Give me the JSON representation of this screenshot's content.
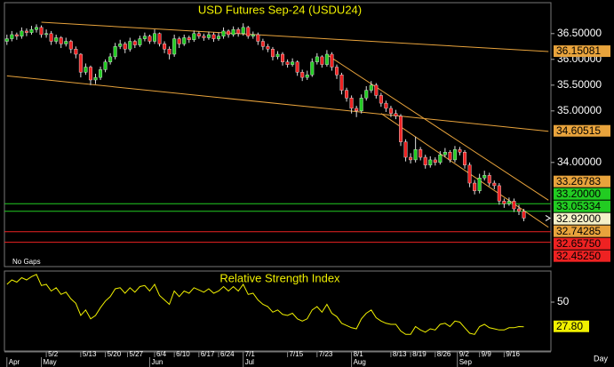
{
  "chart_data": {
    "type": "candlestick",
    "title": "USD Futures Sep-24 (USDU24)",
    "note": "No Gaps",
    "x_axis_label": "Day",
    "up_color": "#22cc22",
    "down_color": "#ee2222",
    "ylim": [
      31.98,
      37.1
    ],
    "yticks": [
      {
        "value": 36.5,
        "label": "36.50000"
      },
      {
        "value": 36.0,
        "label": "36.00000"
      },
      {
        "value": 35.5,
        "label": "35.50000"
      },
      {
        "value": 35.0,
        "label": "35.00000"
      },
      {
        "value": 34.0,
        "label": "34.00000"
      }
    ],
    "xlim": [
      -0.5,
      110.5
    ],
    "xticks": [
      {
        "value": 8,
        "label": "5/2"
      },
      {
        "value": 15,
        "label": "5/13"
      },
      {
        "value": 20,
        "label": "5/20"
      },
      {
        "value": 24.5,
        "label": "5/27"
      },
      {
        "value": 30,
        "label": "6/4"
      },
      {
        "value": 34,
        "label": "6/10"
      },
      {
        "value": 39,
        "label": "6/17"
      },
      {
        "value": 43,
        "label": "6/24"
      },
      {
        "value": 48,
        "label": "7/1"
      },
      {
        "value": 57,
        "label": "7/15"
      },
      {
        "value": 63,
        "label": "7/23"
      },
      {
        "value": 70,
        "label": "8/1"
      },
      {
        "value": 78,
        "label": "8/13"
      },
      {
        "value": 82,
        "label": "8/19"
      },
      {
        "value": 87,
        "label": "8/26"
      },
      {
        "value": 91.5,
        "label": "9/2"
      },
      {
        "value": 96,
        "label": "9/9"
      },
      {
        "value": 101,
        "label": "9/16"
      }
    ],
    "month_ticks": [
      {
        "value": 0,
        "label": "Apr"
      },
      {
        "value": 7,
        "label": "May"
      },
      {
        "value": 29,
        "label": "Jun"
      },
      {
        "value": 48,
        "label": "Jul"
      },
      {
        "value": 70,
        "label": "Aug"
      },
      {
        "value": 91.5,
        "label": "Sep"
      }
    ],
    "candles": [
      [
        36.35,
        36.48,
        36.28,
        36.4
      ],
      [
        36.4,
        36.55,
        36.35,
        36.48
      ],
      [
        36.48,
        36.52,
        36.38,
        36.45
      ],
      [
        36.45,
        36.62,
        36.4,
        36.55
      ],
      [
        36.55,
        36.6,
        36.45,
        36.52
      ],
      [
        36.52,
        36.65,
        36.48,
        36.58
      ],
      [
        36.58,
        36.68,
        36.52,
        36.62
      ],
      [
        36.62,
        36.66,
        36.42,
        36.48
      ],
      [
        36.48,
        36.58,
        36.42,
        36.5
      ],
      [
        36.5,
        36.55,
        36.28,
        36.35
      ],
      [
        36.35,
        36.48,
        36.3,
        36.42
      ],
      [
        36.42,
        36.45,
        36.22,
        36.3
      ],
      [
        36.3,
        36.42,
        36.25,
        36.35
      ],
      [
        36.35,
        36.38,
        36.12,
        36.2
      ],
      [
        36.2,
        36.25,
        36.02,
        36.1
      ],
      [
        36.1,
        36.12,
        35.65,
        35.75
      ],
      [
        35.75,
        35.92,
        35.7,
        35.85
      ],
      [
        35.85,
        35.88,
        35.5,
        35.6
      ],
      [
        35.6,
        35.72,
        35.52,
        35.65
      ],
      [
        35.65,
        35.86,
        35.6,
        35.8
      ],
      [
        35.8,
        36.0,
        35.75,
        35.95
      ],
      [
        35.95,
        36.12,
        35.9,
        36.05
      ],
      [
        36.05,
        36.32,
        36.0,
        36.25
      ],
      [
        36.25,
        36.38,
        36.2,
        36.3
      ],
      [
        36.3,
        36.34,
        36.12,
        36.2
      ],
      [
        36.2,
        36.42,
        36.15,
        36.35
      ],
      [
        36.35,
        36.38,
        36.22,
        36.28
      ],
      [
        36.28,
        36.46,
        36.24,
        36.4
      ],
      [
        36.4,
        36.52,
        36.35,
        36.45
      ],
      [
        36.45,
        36.48,
        36.3,
        36.35
      ],
      [
        36.35,
        36.58,
        36.3,
        36.5
      ],
      [
        36.5,
        36.52,
        36.25,
        36.3
      ],
      [
        36.3,
        36.35,
        36.12,
        36.2
      ],
      [
        36.2,
        36.25,
        36.0,
        36.1
      ],
      [
        36.1,
        36.48,
        36.05,
        36.4
      ],
      [
        36.4,
        36.44,
        36.22,
        36.3
      ],
      [
        36.3,
        36.48,
        36.26,
        36.42
      ],
      [
        36.42,
        36.46,
        36.32,
        36.38
      ],
      [
        36.38,
        36.56,
        36.34,
        36.5
      ],
      [
        36.5,
        36.54,
        36.4,
        36.45
      ],
      [
        36.45,
        36.5,
        36.36,
        36.42
      ],
      [
        36.42,
        36.54,
        36.38,
        36.48
      ],
      [
        36.48,
        36.52,
        36.34,
        36.4
      ],
      [
        36.4,
        36.52,
        36.36,
        36.45
      ],
      [
        36.45,
        36.62,
        36.4,
        36.55
      ],
      [
        36.55,
        36.58,
        36.42,
        36.48
      ],
      [
        36.48,
        36.64,
        36.44,
        36.58
      ],
      [
        36.58,
        36.62,
        36.44,
        36.5
      ],
      [
        36.5,
        36.7,
        36.46,
        36.62
      ],
      [
        36.62,
        36.65,
        36.4,
        36.45
      ],
      [
        36.45,
        36.54,
        36.4,
        36.48
      ],
      [
        36.48,
        36.52,
        36.28,
        36.35
      ],
      [
        36.35,
        36.4,
        36.18,
        36.25
      ],
      [
        36.25,
        36.3,
        36.14,
        36.2
      ],
      [
        36.2,
        36.24,
        35.98,
        36.05
      ],
      [
        36.05,
        36.16,
        36.0,
        36.1
      ],
      [
        36.1,
        36.14,
        35.88,
        35.95
      ],
      [
        35.95,
        36.0,
        35.84,
        35.9
      ],
      [
        35.9,
        36.02,
        35.86,
        35.95
      ],
      [
        35.95,
        35.98,
        35.68,
        35.75
      ],
      [
        35.75,
        35.8,
        35.58,
        35.65
      ],
      [
        35.65,
        35.78,
        35.6,
        35.7
      ],
      [
        35.7,
        36.02,
        35.66,
        35.95
      ],
      [
        35.95,
        36.12,
        35.9,
        36.05
      ],
      [
        36.05,
        36.08,
        35.84,
        35.9
      ],
      [
        35.9,
        36.18,
        35.86,
        36.1
      ],
      [
        36.1,
        36.14,
        35.78,
        35.85
      ],
      [
        35.85,
        35.9,
        35.62,
        35.7
      ],
      [
        35.7,
        35.74,
        35.32,
        35.4
      ],
      [
        35.4,
        35.45,
        35.18,
        35.25
      ],
      [
        35.25,
        35.3,
        34.95,
        35.05
      ],
      [
        35.05,
        35.1,
        34.88,
        35.0
      ],
      [
        35.0,
        35.32,
        34.95,
        35.25
      ],
      [
        35.25,
        35.48,
        35.2,
        35.4
      ],
      [
        35.4,
        35.58,
        35.35,
        35.5
      ],
      [
        35.5,
        35.54,
        35.24,
        35.3
      ],
      [
        35.3,
        35.35,
        35.08,
        35.15
      ],
      [
        35.15,
        35.2,
        34.98,
        35.05
      ],
      [
        35.05,
        35.1,
        34.88,
        34.95
      ],
      [
        34.95,
        35.02,
        34.84,
        34.9
      ],
      [
        34.9,
        34.94,
        34.32,
        34.4
      ],
      [
        34.4,
        34.45,
        34.02,
        34.1
      ],
      [
        34.1,
        34.18,
        33.98,
        34.05
      ],
      [
        34.05,
        34.5,
        34.0,
        34.25
      ],
      [
        34.25,
        34.3,
        34.04,
        34.1
      ],
      [
        34.1,
        34.15,
        33.88,
        33.95
      ],
      [
        33.95,
        34.12,
        33.9,
        34.05
      ],
      [
        34.05,
        34.1,
        33.94,
        34.0
      ],
      [
        34.0,
        34.22,
        33.96,
        34.15
      ],
      [
        34.15,
        34.28,
        34.1,
        34.2
      ],
      [
        34.2,
        34.24,
        34.0,
        34.05
      ],
      [
        34.05,
        34.32,
        34.0,
        34.25
      ],
      [
        34.25,
        34.3,
        34.14,
        34.2
      ],
      [
        34.2,
        34.24,
        33.88,
        33.95
      ],
      [
        33.95,
        34.0,
        33.52,
        33.6
      ],
      [
        33.6,
        33.66,
        33.38,
        33.45
      ],
      [
        33.45,
        33.78,
        33.4,
        33.7
      ],
      [
        33.7,
        33.84,
        33.65,
        33.75
      ],
      [
        33.75,
        33.8,
        33.54,
        33.6
      ],
      [
        33.6,
        33.65,
        33.48,
        33.55
      ],
      [
        33.55,
        33.6,
        33.18,
        33.25
      ],
      [
        33.25,
        33.3,
        33.12,
        33.2
      ],
      [
        33.2,
        33.32,
        33.16,
        33.25
      ],
      [
        33.25,
        33.3,
        33.04,
        33.1
      ],
      [
        33.1,
        33.18,
        32.98,
        33.05
      ],
      [
        33.05,
        33.1,
        32.86,
        32.92
      ]
    ],
    "trendline_color": "#e8a33c",
    "trendlines": [
      {
        "start": [
          7,
          36.72
        ],
        "end": [
          110,
          36.15081
        ]
      },
      {
        "start": [
          0,
          35.68
        ],
        "end": [
          110,
          34.60515
        ]
      },
      {
        "start": [
          65,
          36.09
        ],
        "end": [
          110,
          33.26783
        ]
      },
      {
        "start": [
          76,
          34.95
        ],
        "end": [
          110,
          32.74285
        ]
      }
    ],
    "levels": [
      {
        "value": 33.2,
        "label": "33.20000",
        "color": "#22cc22"
      },
      {
        "value": 33.05334,
        "label": "33.05334",
        "color": "#22cc22"
      },
      {
        "value": 32.6575,
        "label": "32.65750",
        "color": "#ee2222"
      },
      {
        "value": 32.4525,
        "label": "32.45250",
        "color": "#ee2222"
      }
    ],
    "last_price": {
      "value": 32.92,
      "label": "32.92000",
      "color": "#f4f0c8"
    },
    "rsi": {
      "title": "Relative Strength Index",
      "color": "#f0f000",
      "ylim": [
        6,
        78
      ],
      "yticks": [
        50
      ],
      "values": [
        66,
        70,
        68,
        72,
        70,
        73,
        75,
        65,
        66,
        60,
        63,
        57,
        59,
        53,
        49,
        38,
        43,
        35,
        38,
        45,
        51,
        55,
        62,
        63,
        58,
        63,
        59,
        64,
        65,
        60,
        66,
        56,
        52,
        48,
        60,
        55,
        60,
        58,
        63,
        61,
        59,
        62,
        58,
        60,
        64,
        60,
        64,
        60,
        66,
        57,
        58,
        52,
        48,
        46,
        41,
        43,
        39,
        38,
        40,
        35,
        33,
        35,
        43,
        46,
        41,
        48,
        40,
        37,
        31,
        29,
        27,
        26,
        35,
        40,
        43,
        36,
        33,
        31,
        30,
        30,
        24,
        21,
        21,
        28,
        25,
        23,
        26,
        25,
        30,
        31,
        28,
        33,
        32,
        27,
        22,
        21,
        28,
        30,
        27,
        26,
        25,
        25,
        27,
        27,
        28,
        27.8
      ],
      "last_value": {
        "value": 27.8,
        "label": "27.80"
      }
    }
  }
}
